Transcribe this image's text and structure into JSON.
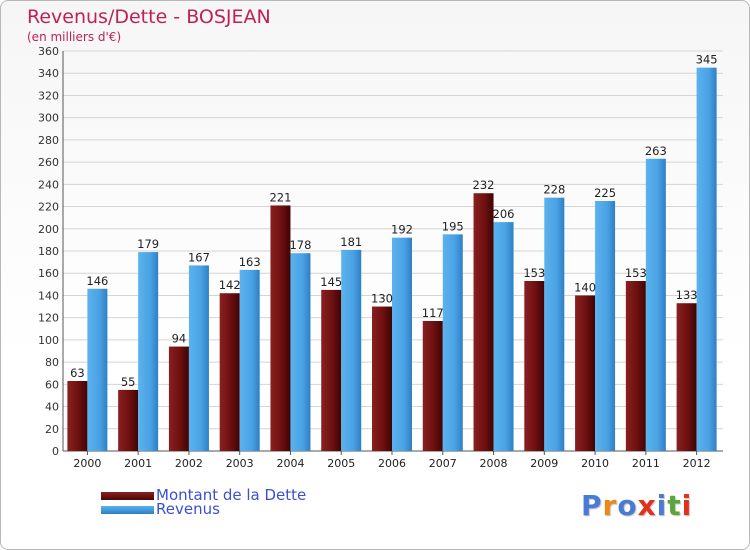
{
  "header": {
    "title": "Revenus/Dette - BOSJEAN",
    "subtitle": "(en milliers d'€)"
  },
  "legend": [
    {
      "label": "Montant de la Dette",
      "color": "#6b0c0c"
    },
    {
      "label": "Revenus",
      "color": "#4ba3e6"
    }
  ],
  "logo": {
    "text": "Proxiti",
    "letter_colors": [
      "#4a7bd4",
      "#e88a1a",
      "#4a7bd4",
      "#e0301e",
      "#4a7bd4",
      "#5aa63a",
      "#e0301e"
    ]
  },
  "chart_data": {
    "type": "bar",
    "title": "Revenus/Dette - BOSJEAN",
    "subtitle": "(en milliers d'€)",
    "categories": [
      "2000",
      "2001",
      "2002",
      "2003",
      "2004",
      "2005",
      "2006",
      "2007",
      "2008",
      "2009",
      "2010",
      "2011",
      "2012"
    ],
    "series": [
      {
        "name": "Montant de la Dette",
        "color": "#6b0c0c",
        "values": [
          63,
          55,
          94,
          142,
          221,
          145,
          130,
          117,
          232,
          153,
          140,
          153,
          133
        ]
      },
      {
        "name": "Revenus",
        "color": "#4ba3e6",
        "values": [
          146,
          179,
          167,
          163,
          178,
          181,
          192,
          195,
          206,
          228,
          225,
          263,
          345
        ]
      }
    ],
    "ylim": [
      0,
      360
    ],
    "yticks": [
      0,
      20,
      40,
      60,
      80,
      100,
      120,
      140,
      160,
      180,
      200,
      220,
      240,
      260,
      280,
      300,
      320,
      340,
      360
    ],
    "grid": true,
    "legend_position": "bottom-left"
  }
}
